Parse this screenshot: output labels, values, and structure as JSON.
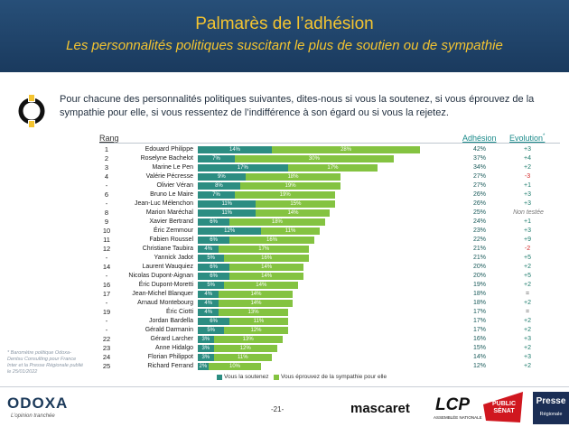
{
  "header": {
    "title": "Palmarès de l’adhésion",
    "subtitle": "Les personnalités politiques suscitant le plus de soutien ou de sympathie"
  },
  "question": "Pour chacune des personnalités politiques suivantes, dites-nous si vous la soutenez, si vous éprouvez de la sympathie pour elle, si vous ressentez de l’indifférence à son égard ou si vous la rejetez.",
  "columns": {
    "rang": "Rang",
    "adhesion": "Adhésion",
    "evolution": "Evolution",
    "evolution_mark": "*"
  },
  "colors": {
    "soutien": "#2c8d82",
    "sympathie": "#84c341",
    "header": "#1a3a5e",
    "accent": "#f4c430"
  },
  "chart_data": {
    "type": "bar",
    "orientation": "horizontal",
    "stacked": true,
    "series": [
      {
        "name": "Vous la soutenez",
        "key": "soutien"
      },
      {
        "name": "Vous éprouvez de la sympathie pour elle",
        "key": "sympathie"
      }
    ],
    "rows": [
      {
        "rank": "1",
        "name": "Edouard Philippe",
        "soutien": 14,
        "sympathie": 28,
        "adhesion": "42%",
        "evolution": "+3"
      },
      {
        "rank": "2",
        "name": "Roselyne Bachelot",
        "soutien": 7,
        "sympathie": 30,
        "adhesion": "37%",
        "evolution": "+4"
      },
      {
        "rank": "3",
        "name": "Marine Le Pen",
        "soutien": 17,
        "sympathie": 17,
        "adhesion": "34%",
        "evolution": "+2"
      },
      {
        "rank": "4",
        "name": "Valérie Pécresse",
        "soutien": 9,
        "sympathie": 18,
        "adhesion": "27%",
        "evolution": "-3"
      },
      {
        "rank": "-",
        "name": "Olivier Véran",
        "soutien": 8,
        "sympathie": 19,
        "adhesion": "27%",
        "evolution": "+1"
      },
      {
        "rank": "6",
        "name": "Bruno Le Maire",
        "soutien": 7,
        "sympathie": 19,
        "adhesion": "26%",
        "evolution": "+3"
      },
      {
        "rank": "-",
        "name": "Jean-Luc Mélenchon",
        "soutien": 11,
        "sympathie": 15,
        "adhesion": "26%",
        "evolution": "+3"
      },
      {
        "rank": "8",
        "name": "Marion Maréchal",
        "soutien": 11,
        "sympathie": 14,
        "adhesion": "25%",
        "evolution": "Non testée"
      },
      {
        "rank": "9",
        "name": "Xavier Bertrand",
        "soutien": 6,
        "sympathie": 18,
        "adhesion": "24%",
        "evolution": "+1"
      },
      {
        "rank": "10",
        "name": "Éric Zemmour",
        "soutien": 12,
        "sympathie": 11,
        "adhesion": "23%",
        "evolution": "+3"
      },
      {
        "rank": "11",
        "name": "Fabien Roussel",
        "soutien": 6,
        "sympathie": 16,
        "adhesion": "22%",
        "evolution": "+9"
      },
      {
        "rank": "12",
        "name": "Christiane Taubira",
        "soutien": 4,
        "sympathie": 17,
        "adhesion": "21%",
        "evolution": "-2"
      },
      {
        "rank": "-",
        "name": "Yannick Jadot",
        "soutien": 5,
        "sympathie": 16,
        "adhesion": "21%",
        "evolution": "+5"
      },
      {
        "rank": "14",
        "name": "Laurent Wauquiez",
        "soutien": 6,
        "sympathie": 14,
        "adhesion": "20%",
        "evolution": "+2"
      },
      {
        "rank": "-",
        "name": "Nicolas Dupont-Aignan",
        "soutien": 6,
        "sympathie": 14,
        "adhesion": "20%",
        "evolution": "+5"
      },
      {
        "rank": "16",
        "name": "Éric Dupont-Moretti",
        "soutien": 5,
        "sympathie": 14,
        "adhesion": "19%",
        "evolution": "+2"
      },
      {
        "rank": "17",
        "name": "Jean-Michel Blanquer",
        "soutien": 4,
        "sympathie": 14,
        "adhesion": "18%",
        "evolution": "="
      },
      {
        "rank": "-",
        "name": "Arnaud Montebourg",
        "soutien": 4,
        "sympathie": 14,
        "adhesion": "18%",
        "evolution": "+2"
      },
      {
        "rank": "19",
        "name": "Éric Ciotti",
        "soutien": 4,
        "sympathie": 13,
        "adhesion": "17%",
        "evolution": "="
      },
      {
        "rank": "-",
        "name": "Jordan Bardella",
        "soutien": 6,
        "sympathie": 11,
        "adhesion": "17%",
        "evolution": "+2"
      },
      {
        "rank": "-",
        "name": "Gérald Darmanin",
        "soutien": 5,
        "sympathie": 12,
        "adhesion": "17%",
        "evolution": "+2"
      },
      {
        "rank": "22",
        "name": "Gérard Larcher",
        "soutien": 3,
        "sympathie": 13,
        "adhesion": "16%",
        "evolution": "+3"
      },
      {
        "rank": "23",
        "name": "Anne Hidalgo",
        "soutien": 3,
        "sympathie": 12,
        "adhesion": "15%",
        "evolution": "+2"
      },
      {
        "rank": "24",
        "name": "Florian Philippot",
        "soutien": 3,
        "sympathie": 11,
        "adhesion": "14%",
        "evolution": "+3"
      },
      {
        "rank": "25",
        "name": "Richard Ferrand",
        "soutien": 2,
        "sympathie": 10,
        "adhesion": "12%",
        "evolution": "+2"
      }
    ],
    "legend": "bottom"
  },
  "note": "* Baromètre politique Odoxa-Dentsu Consulting pour France Inter et la Presse Régionale publié le 25/01/2022",
  "footer": {
    "odoxa": "ODOXA",
    "odoxa_tagline": "L’opinion tranchée",
    "page": "-21-",
    "mascaret": "mascaret",
    "lcp": "LCP",
    "lcp_sub": "ASSEMBLÉE NATIONALE",
    "public_senat": "PUBLIC SÉNAT",
    "presse_1": "Presse",
    "presse_2": "Régionale"
  }
}
